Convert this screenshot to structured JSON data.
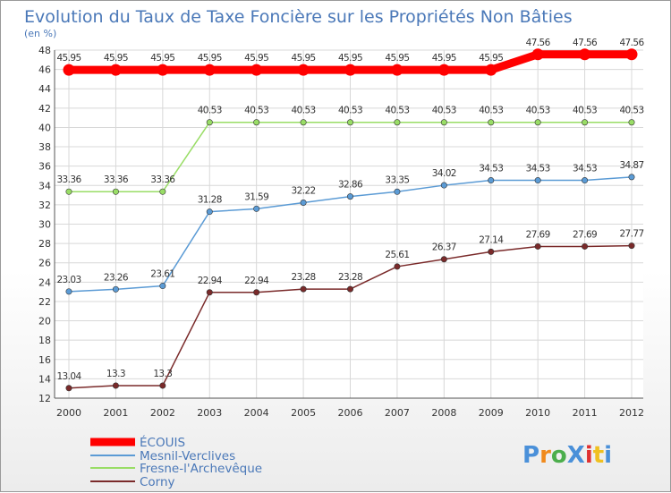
{
  "chart_data": {
    "type": "line",
    "title": "Evolution du Taux de Taxe Foncière sur les Propriétés Non Bâties",
    "subtitle": "(en %)",
    "xlabel": "",
    "ylabel": "",
    "ylim": [
      12,
      48
    ],
    "ytick_step": 2,
    "grid": true,
    "x": [
      "2000",
      "2001",
      "2002",
      "2003",
      "2004",
      "2005",
      "2006",
      "2007",
      "2008",
      "2009",
      "2010",
      "2011",
      "2012"
    ],
    "series": [
      {
        "name": "ÉCOUIS",
        "color": "#ff0000",
        "values": [
          45.95,
          45.95,
          45.95,
          45.95,
          45.95,
          45.95,
          45.95,
          45.95,
          45.95,
          45.95,
          47.56,
          47.56,
          47.56
        ],
        "labels": [
          "45.95",
          "45.95",
          "45.95",
          "45.95",
          "45.95",
          "45.95",
          "45.95",
          "45.95",
          "45.95",
          "45.95",
          "47.56",
          "47.56",
          "47.56"
        ]
      },
      {
        "name": "Mesnil-Verclives",
        "color": "#5b9bd5",
        "values": [
          23.03,
          23.26,
          23.61,
          31.28,
          31.59,
          32.22,
          32.86,
          33.35,
          34.02,
          34.53,
          34.53,
          34.53,
          34.87
        ],
        "labels": [
          "23.03",
          "23.26",
          "23.61",
          "31.28",
          "31.59",
          "32.22",
          "32.86",
          "33.35",
          "34.02",
          "34.53",
          "34.53",
          "34.53",
          "34.87"
        ]
      },
      {
        "name": "Fresne-l'Archevêque",
        "color": "#99dd66",
        "values": [
          33.36,
          33.36,
          33.36,
          40.53,
          40.53,
          40.53,
          40.53,
          40.53,
          40.53,
          40.53,
          40.53,
          40.53,
          40.53
        ],
        "labels": [
          "33.36",
          "33.36",
          "33.36",
          "40.53",
          "40.53",
          "40.53",
          "40.53",
          "40.53",
          "40.53",
          "40.53",
          "40.53",
          "40.53",
          "40.53"
        ]
      },
      {
        "name": "Corny",
        "color": "#7a2a2a",
        "values": [
          13.04,
          13.3,
          13.3,
          22.94,
          22.94,
          23.28,
          23.28,
          25.61,
          26.37,
          27.14,
          27.69,
          27.69,
          27.77
        ],
        "labels": [
          "13.04",
          "13.3",
          "13.3",
          "22.94",
          "22.94",
          "23.28",
          "23.28",
          "25.61",
          "26.37",
          "27.14",
          "27.69",
          "27.69",
          "27.77"
        ]
      }
    ],
    "legend_position": "bottom-left"
  },
  "logo": {
    "text": "ProXiti",
    "letters": [
      "P",
      "r",
      "o",
      "X",
      "i",
      "t",
      "i"
    ],
    "colors": [
      "#4a90d9",
      "#f08a1c",
      "#4cae4c",
      "#4a90d9",
      "#e03030",
      "#f0c020",
      "#4a90d9"
    ]
  }
}
